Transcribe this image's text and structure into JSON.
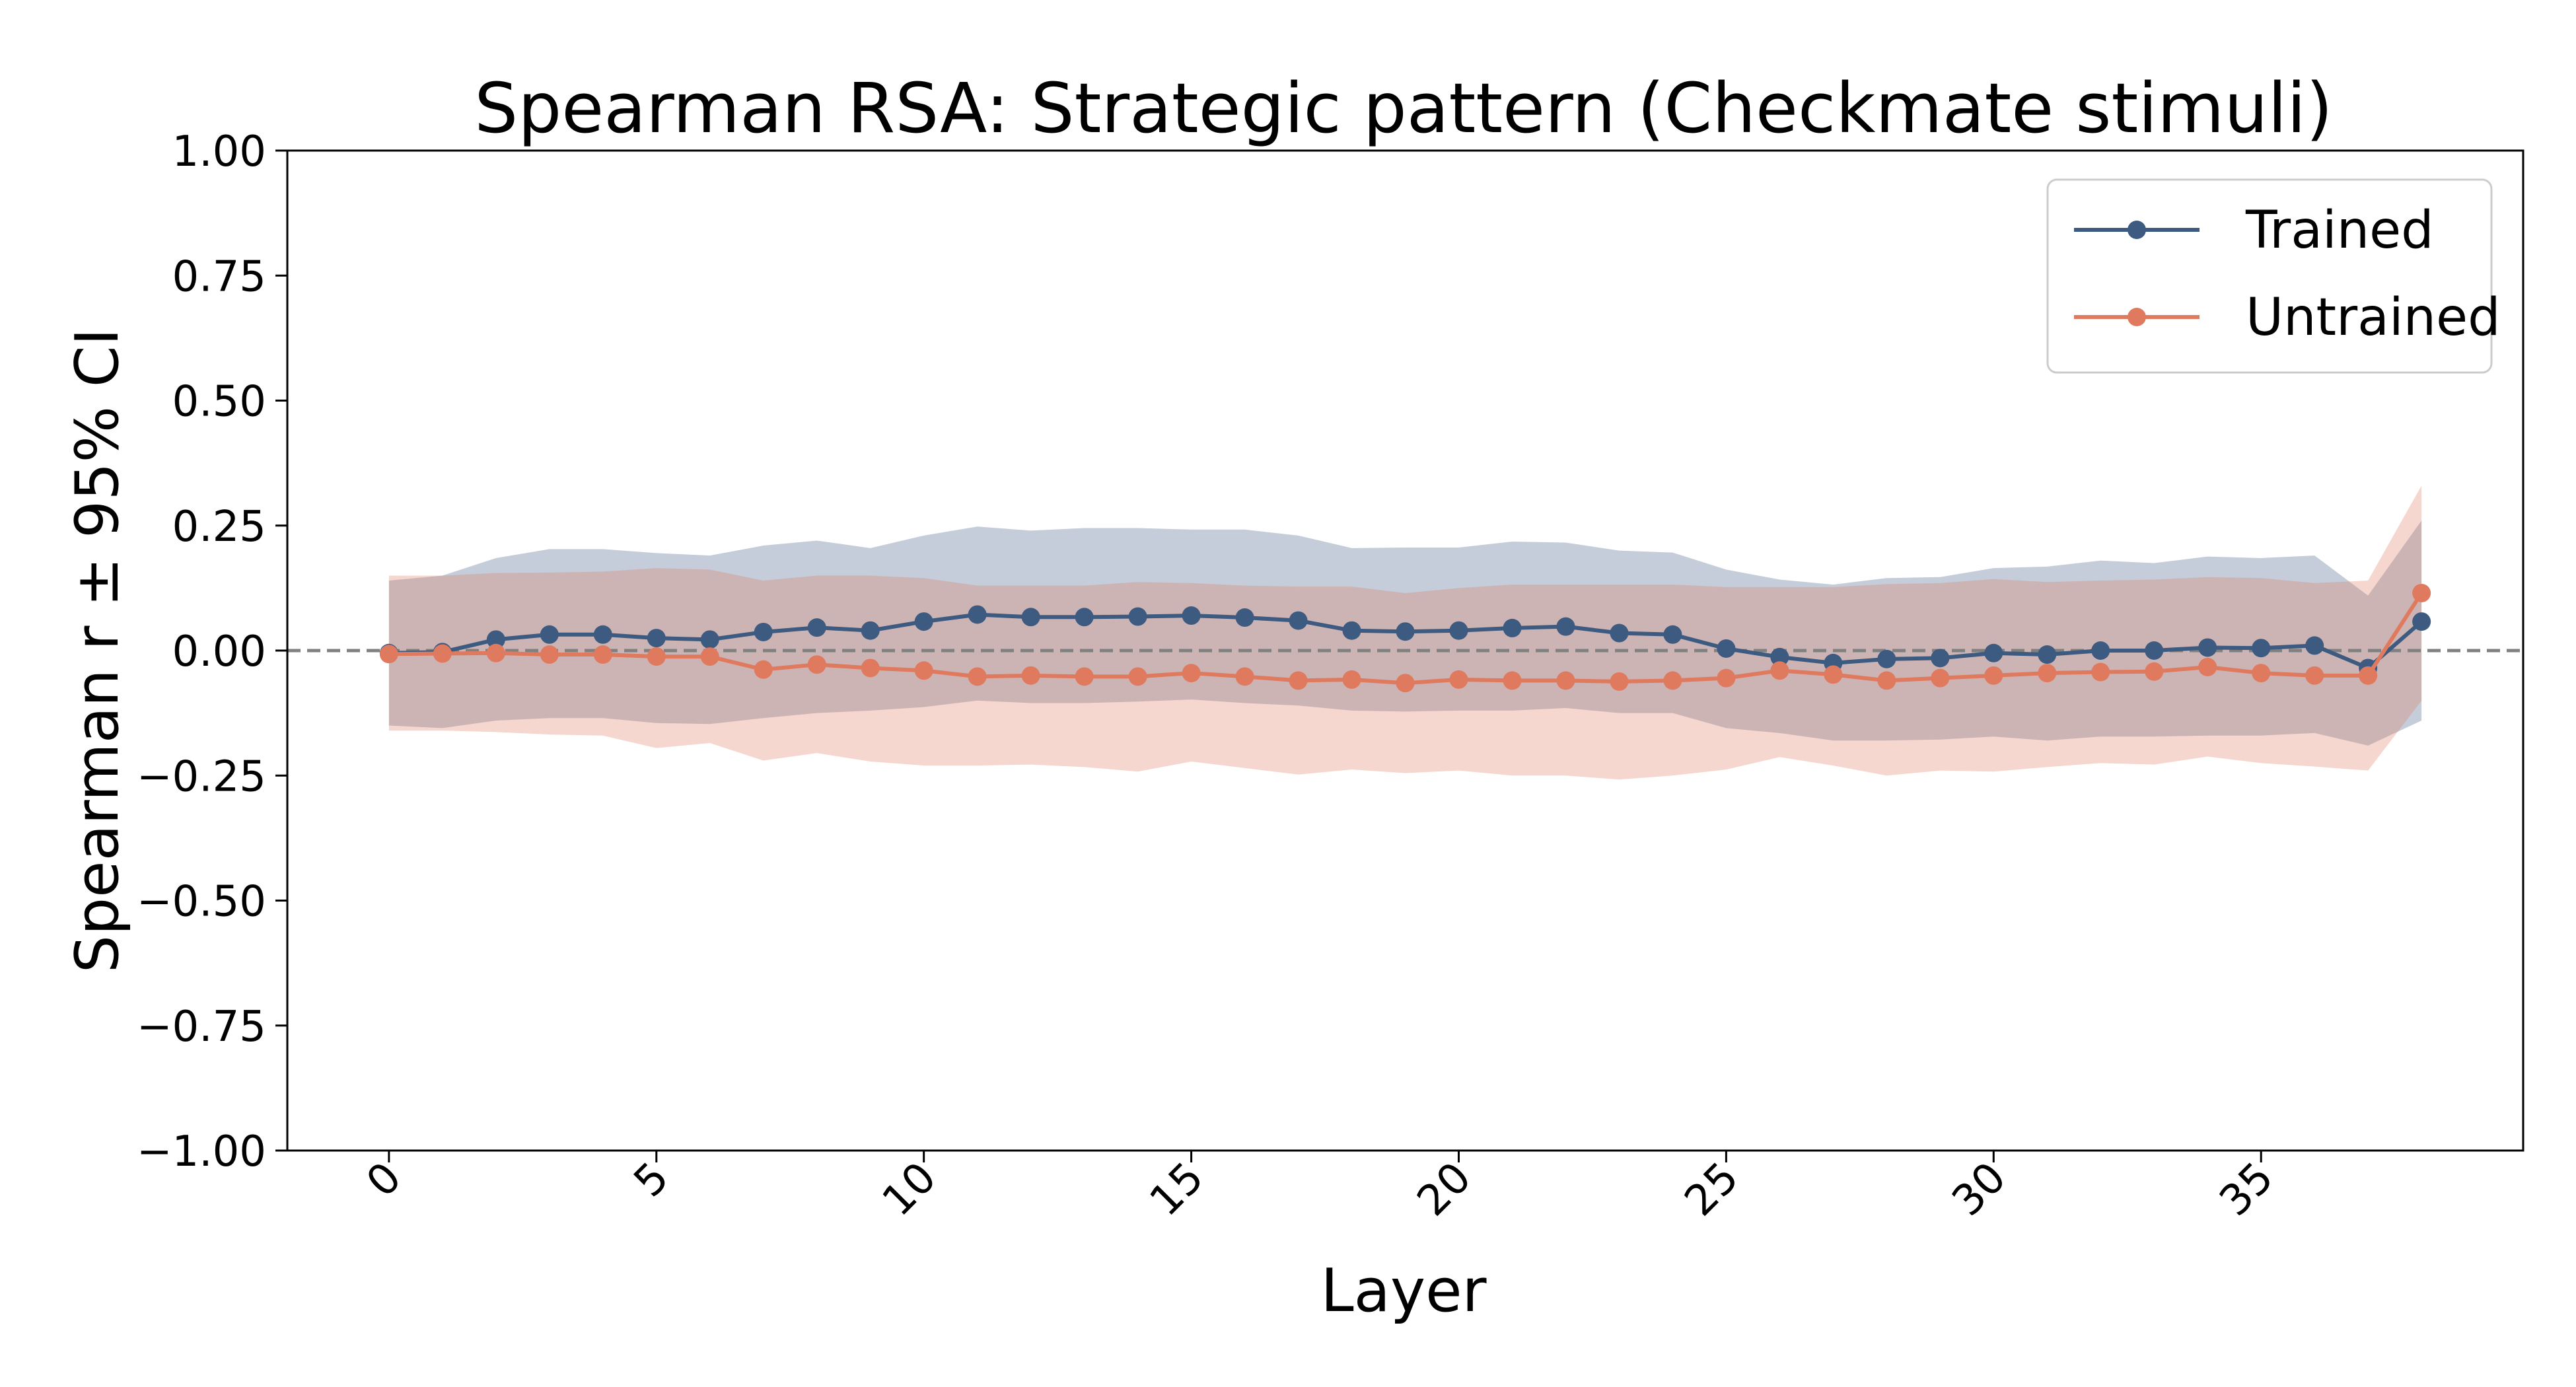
{
  "chart_data": {
    "type": "line",
    "title": "Spearman RSA: Strategic pattern (Checkmate stimuli)",
    "xlabel": "Layer",
    "ylabel": "Spearman r ± 95% CI",
    "xlim": [
      -1.9,
      39.9
    ],
    "ylim": [
      -1.0,
      1.0
    ],
    "xticks": [
      0,
      5,
      10,
      15,
      20,
      25,
      30,
      35
    ],
    "xtick_labels": [
      "0",
      "5",
      "10",
      "15",
      "20",
      "25",
      "30",
      "35"
    ],
    "yticks": [
      1.0,
      0.75,
      0.5,
      0.25,
      0.0,
      -0.25,
      -0.5,
      -0.75,
      -1.0
    ],
    "ytick_labels": [
      "1.00",
      "0.75",
      "0.50",
      "0.25",
      "0.00",
      "−0.25",
      "−0.50",
      "−0.75",
      "−1.00"
    ],
    "xtick_rotation": 45,
    "grid": false,
    "reference_line": {
      "y": 0.0,
      "style": "dashed",
      "color": "#808080"
    },
    "legend_position": "top-right",
    "x": [
      0,
      1,
      2,
      3,
      4,
      5,
      6,
      7,
      8,
      9,
      10,
      11,
      12,
      13,
      14,
      15,
      16,
      17,
      18,
      19,
      20,
      21,
      22,
      23,
      24,
      25,
      26,
      27,
      28,
      29,
      30,
      31,
      32,
      33,
      34,
      35,
      36,
      37,
      38
    ],
    "series": [
      {
        "name": "Trained",
        "color": "#3d5a80",
        "values": [
          -0.005,
          -0.003,
          0.022,
          0.032,
          0.032,
          0.025,
          0.022,
          0.037,
          0.046,
          0.04,
          0.058,
          0.072,
          0.067,
          0.067,
          0.068,
          0.07,
          0.066,
          0.06,
          0.04,
          0.038,
          0.04,
          0.045,
          0.048,
          0.035,
          0.032,
          0.004,
          -0.013,
          -0.025,
          -0.017,
          -0.015,
          -0.005,
          -0.008,
          0.0,
          0.0,
          0.006,
          0.005,
          0.01,
          -0.035,
          0.058
        ],
        "ci_upper": [
          0.14,
          0.15,
          0.185,
          0.203,
          0.203,
          0.195,
          0.19,
          0.21,
          0.22,
          0.205,
          0.23,
          0.248,
          0.24,
          0.245,
          0.245,
          0.242,
          0.242,
          0.23,
          0.205,
          0.206,
          0.206,
          0.218,
          0.216,
          0.2,
          0.196,
          0.162,
          0.142,
          0.132,
          0.145,
          0.147,
          0.165,
          0.168,
          0.18,
          0.175,
          0.188,
          0.185,
          0.19,
          0.11,
          0.26
        ],
        "ci_lower": [
          -0.15,
          -0.155,
          -0.14,
          -0.135,
          -0.135,
          -0.145,
          -0.147,
          -0.135,
          -0.125,
          -0.12,
          -0.113,
          -0.1,
          -0.105,
          -0.105,
          -0.102,
          -0.098,
          -0.105,
          -0.11,
          -0.12,
          -0.122,
          -0.12,
          -0.12,
          -0.115,
          -0.125,
          -0.125,
          -0.155,
          -0.165,
          -0.18,
          -0.18,
          -0.178,
          -0.172,
          -0.18,
          -0.172,
          -0.172,
          -0.17,
          -0.17,
          -0.165,
          -0.19,
          -0.14
        ]
      },
      {
        "name": "Untrained",
        "color": "#e07a5f",
        "values": [
          -0.007,
          -0.006,
          -0.005,
          -0.008,
          -0.008,
          -0.012,
          -0.012,
          -0.038,
          -0.028,
          -0.035,
          -0.04,
          -0.052,
          -0.05,
          -0.052,
          -0.052,
          -0.045,
          -0.052,
          -0.06,
          -0.058,
          -0.065,
          -0.058,
          -0.06,
          -0.06,
          -0.062,
          -0.06,
          -0.055,
          -0.04,
          -0.048,
          -0.06,
          -0.055,
          -0.05,
          -0.045,
          -0.043,
          -0.042,
          -0.033,
          -0.045,
          -0.05,
          -0.05,
          0.115
        ],
        "ci_upper": [
          0.15,
          0.15,
          0.155,
          0.156,
          0.158,
          0.165,
          0.162,
          0.14,
          0.15,
          0.15,
          0.145,
          0.13,
          0.13,
          0.13,
          0.137,
          0.135,
          0.13,
          0.128,
          0.128,
          0.115,
          0.125,
          0.132,
          0.132,
          0.132,
          0.132,
          0.127,
          0.127,
          0.127,
          0.133,
          0.135,
          0.143,
          0.137,
          0.14,
          0.142,
          0.147,
          0.145,
          0.135,
          0.14,
          0.33
        ],
        "ci_lower": [
          -0.16,
          -0.16,
          -0.163,
          -0.168,
          -0.17,
          -0.195,
          -0.185,
          -0.22,
          -0.205,
          -0.222,
          -0.23,
          -0.23,
          -0.228,
          -0.233,
          -0.242,
          -0.222,
          -0.235,
          -0.248,
          -0.238,
          -0.245,
          -0.24,
          -0.25,
          -0.25,
          -0.258,
          -0.25,
          -0.238,
          -0.213,
          -0.23,
          -0.25,
          -0.24,
          -0.242,
          -0.233,
          -0.225,
          -0.228,
          -0.212,
          -0.225,
          -0.232,
          -0.24,
          -0.1
        ]
      }
    ]
  }
}
